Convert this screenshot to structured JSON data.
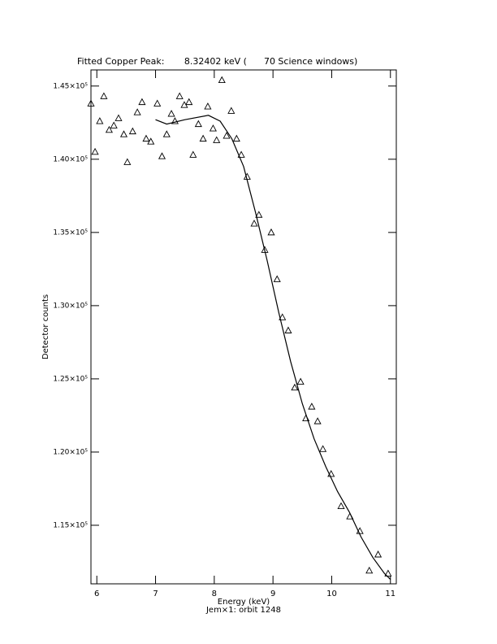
{
  "chart_data": {
    "type": "scatter",
    "title": "Fitted Copper Peak:       8.32402 keV (      70 Science windows)",
    "x_label": "Energy (keV)",
    "subtitle": "Jem×1: orbit 1248",
    "y_label": "Detector counts",
    "xlim": [
      5.9,
      11.1
    ],
    "ylim": [
      111000,
      146100
    ],
    "xticks": [
      6,
      7,
      8,
      9,
      10,
      11
    ],
    "yticks": [
      {
        "value": 115000,
        "label": "1.15×10⁵"
      },
      {
        "value": 120000,
        "label": "1.20×10⁵"
      },
      {
        "value": 125000,
        "label": "1.25×10⁵"
      },
      {
        "value": 130000,
        "label": "1.30×10⁵"
      },
      {
        "value": 135000,
        "label": "1.35×10⁵"
      },
      {
        "value": 140000,
        "label": "1.40×10⁵"
      },
      {
        "value": 145000,
        "label": "1.45×10⁵"
      }
    ],
    "series": [
      {
        "color": "#000000",
        "x": [
          5.9,
          5.97,
          6.05,
          6.12,
          6.21,
          6.29,
          6.37,
          6.46,
          6.52,
          6.61,
          6.69,
          6.77,
          6.84,
          6.92,
          7.03,
          7.11,
          7.19,
          7.27,
          7.33,
          7.41,
          7.49,
          7.57,
          7.64,
          7.73,
          7.81,
          7.89,
          7.98,
          8.04,
          8.13,
          8.21,
          8.29,
          8.38,
          8.46,
          8.56,
          8.68,
          8.76,
          8.86,
          8.97,
          9.07,
          9.16,
          9.26,
          9.37,
          9.47,
          9.56,
          9.66,
          9.76,
          9.85,
          9.99,
          10.16,
          10.31,
          10.48,
          10.64,
          10.79,
          10.96
        ],
        "values": [
          143800,
          140500,
          142600,
          144300,
          142000,
          142300,
          142800,
          141700,
          139800,
          141900,
          143200,
          143900,
          141400,
          141200,
          143800,
          140200,
          141700,
          143100,
          142600,
          144300,
          143700,
          143900,
          140300,
          142400,
          141400,
          143600,
          142100,
          141300,
          145400,
          141600,
          143300,
          141400,
          140300,
          138800,
          135600,
          136200,
          133800,
          135000,
          131800,
          129200,
          128300,
          124400,
          124800,
          122300,
          123100,
          122100,
          120200,
          118500,
          116300,
          115600,
          114600,
          111900,
          113000,
          111700
        ]
      },
      {
        "color": "#000000",
        "line": true,
        "x": [
          7.0,
          7.19,
          7.5,
          7.9,
          8.1,
          8.3,
          8.5,
          8.7,
          8.9,
          9.1,
          9.3,
          9.5,
          9.7,
          9.9,
          10.1,
          10.3,
          10.5,
          10.7,
          10.9,
          11.0
        ],
        "values": [
          142700,
          142400,
          142700,
          143000,
          142600,
          141400,
          139500,
          136400,
          133100,
          129500,
          126200,
          123300,
          120900,
          119000,
          117300,
          115900,
          114200,
          112800,
          111700,
          111300
        ]
      }
    ]
  }
}
